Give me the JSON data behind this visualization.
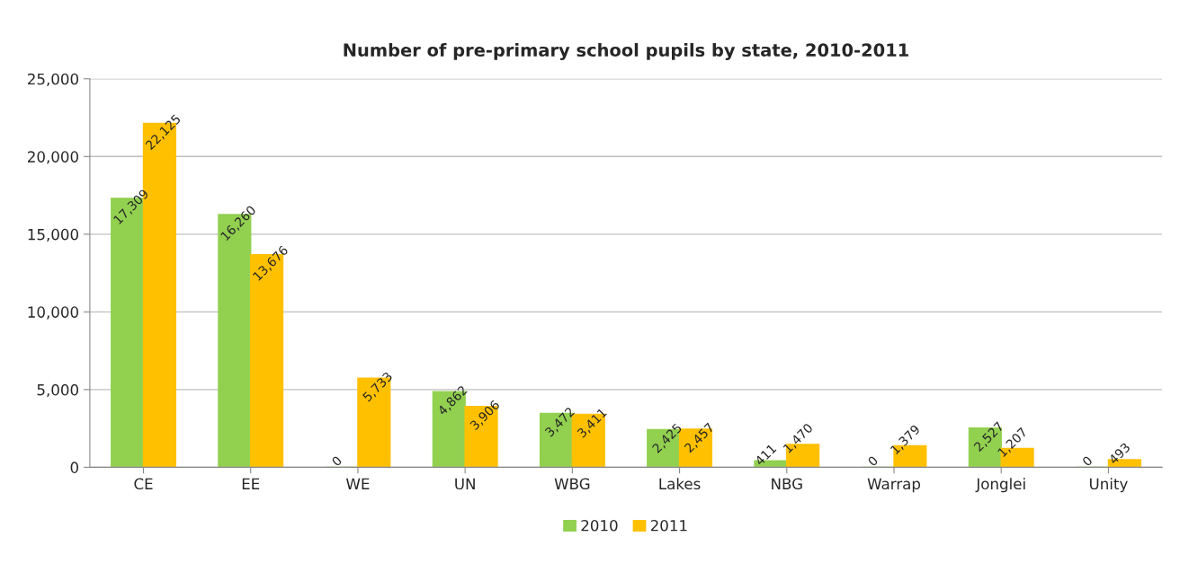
{
  "chart_data": {
    "type": "bar",
    "title": "Number of pre-primary school pupils by state, 2010-2011",
    "categories": [
      "CE",
      "EE",
      "WE",
      "UN",
      "WBG",
      "Lakes",
      "NBG",
      "Warrap",
      "Jonglei",
      "Unity"
    ],
    "series": [
      {
        "name": "2010",
        "color": "#92d050",
        "values": [
          17309,
          16260,
          0,
          4862,
          3472,
          2425,
          411,
          0,
          2527,
          0
        ],
        "value_labels": [
          "17,309",
          "16,260",
          "0",
          "4,862",
          "3,472",
          "2,425",
          "411",
          "0",
          "2,527",
          "0"
        ]
      },
      {
        "name": "2011",
        "color": "#ffc000",
        "values": [
          22125,
          13676,
          5733,
          3906,
          3411,
          2457,
          1470,
          1379,
          1207,
          493
        ],
        "value_labels": [
          "22,125",
          "13,676",
          "5,733",
          "3,906",
          "3,411",
          "2,457",
          "1,470",
          "1,379",
          "1,207",
          "493"
        ]
      }
    ],
    "ylim": [
      0,
      25000
    ],
    "yticks": [
      0,
      {
        "value": 5000,
        "label": "5,000"
      },
      {
        "value": 10000,
        "label": "10,000"
      },
      {
        "value": 15000,
        "label": "15,000"
      },
      {
        "value": 20000,
        "label": "20,000"
      },
      {
        "value": 25000,
        "label": "25,000"
      }
    ],
    "grid": "y",
    "legend": "bottom"
  }
}
